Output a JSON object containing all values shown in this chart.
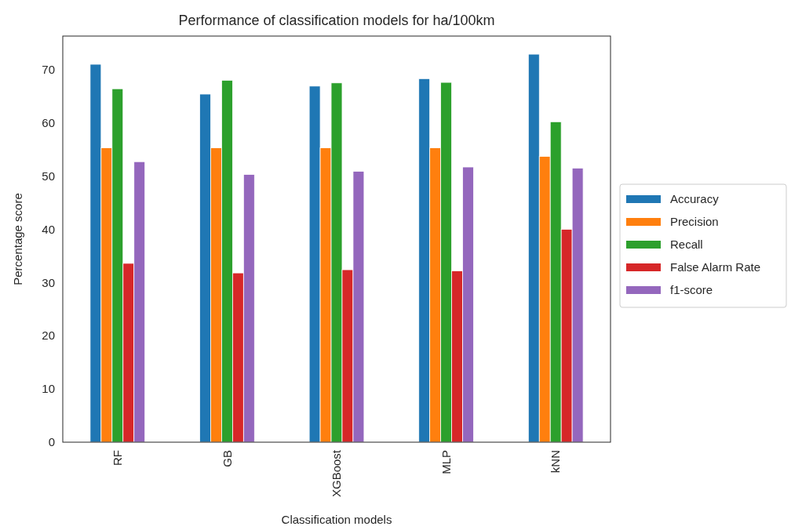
{
  "chart_data": {
    "type": "bar",
    "title": "Performance of classification models for ha/100km",
    "xlabel": "Classification models",
    "ylabel": "Percentage score",
    "categories": [
      "RF",
      "GB",
      "XGBoost",
      "MLP",
      "kNN"
    ],
    "series": [
      {
        "name": "Accuracy",
        "color": "#1f77b4",
        "values": [
          71.0,
          65.4,
          66.9,
          68.3,
          72.9
        ]
      },
      {
        "name": "Precision",
        "color": "#ff7f0e",
        "values": [
          55.3,
          55.3,
          55.3,
          55.3,
          53.7
        ]
      },
      {
        "name": "Recall",
        "color": "#2ca02c",
        "values": [
          66.4,
          68.0,
          67.5,
          67.6,
          60.2
        ]
      },
      {
        "name": "False Alarm Rate",
        "color": "#d62728",
        "values": [
          33.6,
          31.8,
          32.4,
          32.2,
          40.0
        ]
      },
      {
        "name": "f1-score",
        "color": "#9467bd",
        "values": [
          52.7,
          50.3,
          50.9,
          51.7,
          51.5
        ]
      }
    ],
    "ylim": [
      0,
      76.3
    ],
    "yticks": [
      0,
      10,
      20,
      30,
      40,
      50,
      60,
      70
    ],
    "grid": false,
    "legend": "right"
  }
}
